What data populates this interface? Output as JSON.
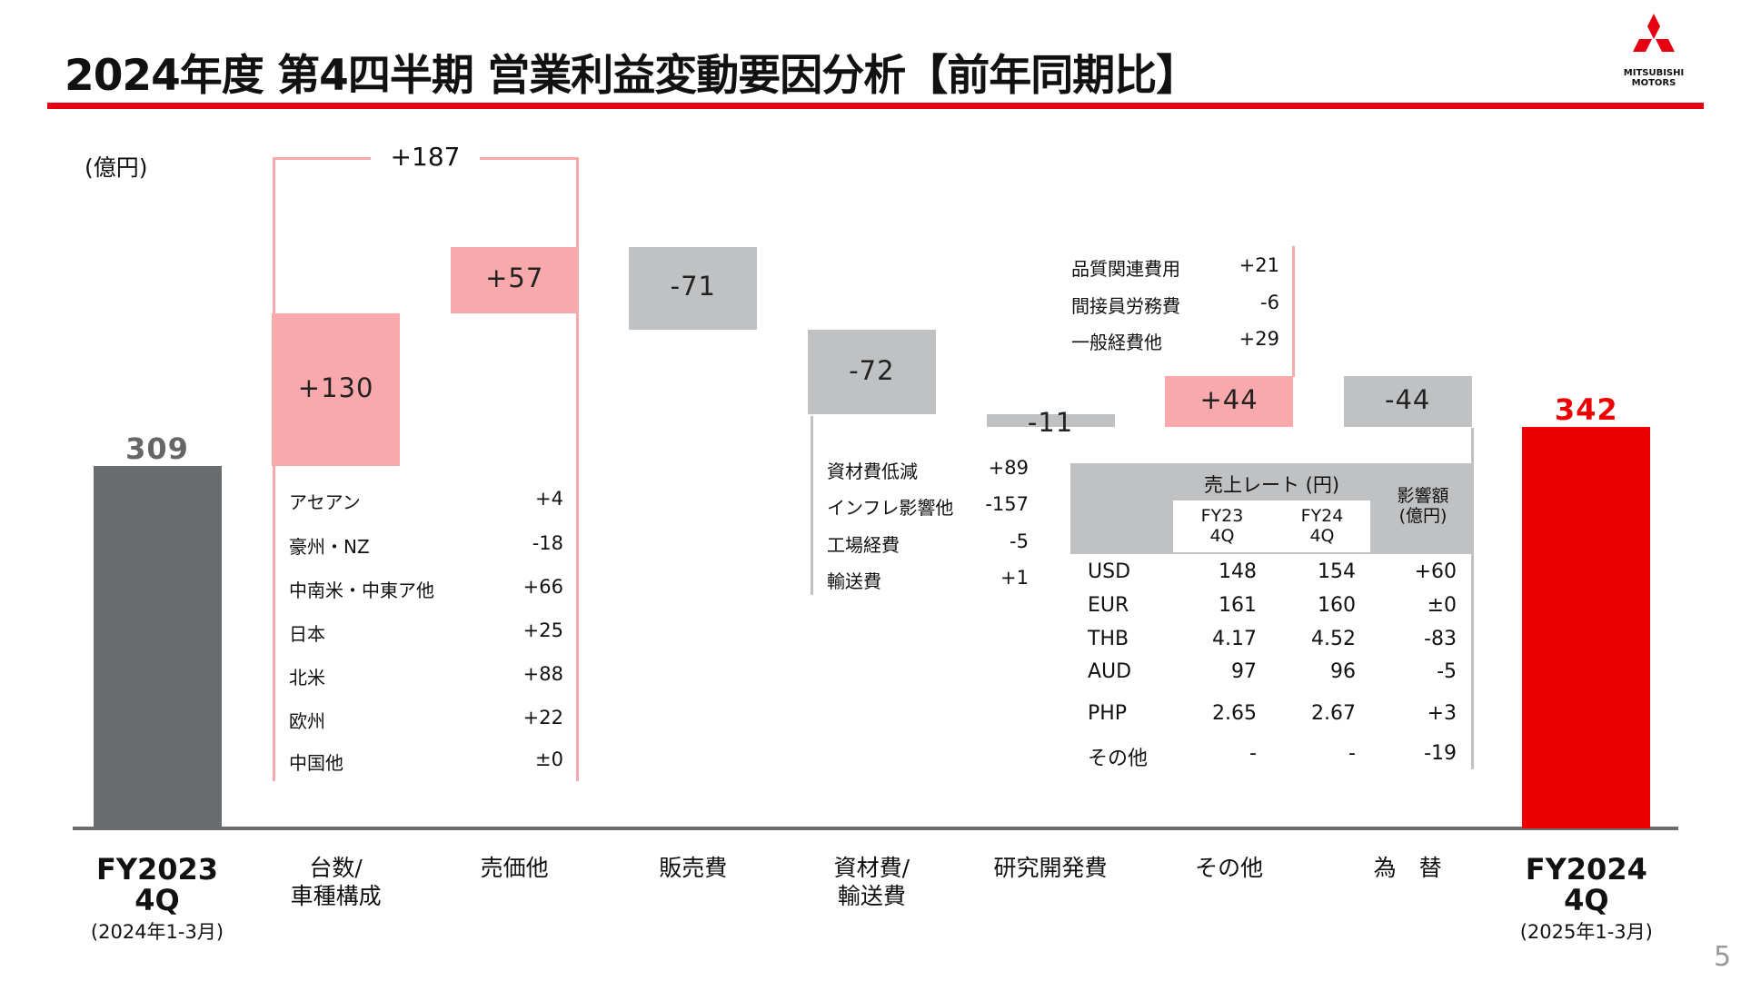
{
  "header": {
    "title": "2024年度 第4四半期 営業利益変動要因分析【前年同期比】",
    "logo_text": [
      "MITSUBISHI",
      "MOTORS"
    ],
    "page_number": "5"
  },
  "colors": {
    "accent": "#e60012",
    "base_bar": "#696c6f",
    "positive": "#f9a9ab",
    "negative": "#bfc1c3",
    "final_bar": "#ee0000"
  },
  "chart_data": {
    "type": "waterfall",
    "unit_label": "(億円)",
    "categories": [
      {
        "lines": [
          "FY2023",
          "4Q"
        ],
        "sub": "(2024年1-3月)",
        "bold": true
      },
      {
        "lines": [
          "台数/",
          "車種構成"
        ]
      },
      {
        "lines": [
          "売価他"
        ]
      },
      {
        "lines": [
          "販売費"
        ]
      },
      {
        "lines": [
          "資材費/",
          "輸送費"
        ]
      },
      {
        "lines": [
          "研究開発費"
        ]
      },
      {
        "lines": [
          "その他"
        ]
      },
      {
        "lines": [
          "為　替"
        ]
      },
      {
        "lines": [
          "FY2024",
          "4Q"
        ],
        "sub": "(2025年1-3月)",
        "bold": true
      }
    ],
    "values": [
      309,
      130,
      57,
      -71,
      -72,
      -11,
      44,
      -44,
      342
    ],
    "labels": [
      "309",
      "+130",
      "+57",
      "-71",
      "-72",
      "-11",
      "+44",
      "-44",
      "342"
    ],
    "bracket": {
      "label": "+187",
      "span": [
        "台数/車種構成",
        "売価他"
      ]
    },
    "breakdowns": {
      "volume_mix": [
        [
          "アセアン",
          "+4"
        ],
        [
          "豪州・NZ",
          "-18"
        ],
        [
          "中南米・中東ア他",
          "+66"
        ],
        [
          "日本",
          "+25"
        ],
        [
          "北米",
          "+88"
        ],
        [
          "欧州",
          "+22"
        ],
        [
          "中国他",
          "±0"
        ]
      ],
      "material": [
        [
          "資材費低減",
          "+89"
        ],
        [
          "インフレ影響他",
          "-157"
        ],
        [
          "工場経費",
          "-5"
        ],
        [
          "輸送費",
          "+1"
        ]
      ],
      "other": [
        [
          "品質関連費用",
          "+21"
        ],
        [
          "間接員労務費",
          "-6"
        ],
        [
          "一般経費他",
          "+29"
        ]
      ]
    },
    "fx_table": {
      "header": "売上レート (円)",
      "col_fy23": [
        "FY23",
        "4Q"
      ],
      "col_fy24": [
        "FY24",
        "4Q"
      ],
      "col_impact": [
        "影響額",
        "(億円)"
      ],
      "rows": [
        [
          "USD",
          "148",
          "154",
          "+60"
        ],
        [
          "EUR",
          "161",
          "160",
          "±0"
        ],
        [
          "THB",
          "4.17",
          "4.52",
          "-83"
        ],
        [
          "AUD",
          "97",
          "96",
          "-5"
        ],
        [
          "PHP",
          "2.65",
          "2.67",
          "+3"
        ],
        [
          "その他",
          "-",
          "-",
          "-19"
        ]
      ]
    }
  }
}
